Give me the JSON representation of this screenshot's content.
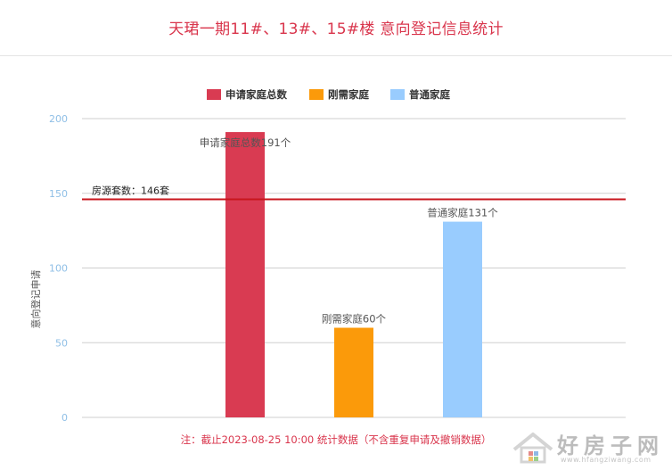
{
  "title": "天珺一期11#、13#、15#楼 意向登记信息统计",
  "footnote": "注：截止2023-08-25 10:00 统计数据（不含重复申请及撤销数据）",
  "watermark": {
    "text": "好房子网",
    "sub": "www.hfangziwang.com"
  },
  "chart_data": {
    "type": "bar",
    "title": "天珺一期11#、13#、15#楼 意向登记信息统计",
    "ylabel": "意向登记申请",
    "xlabel": "",
    "ylim": [
      0,
      200
    ],
    "yticks": [
      0,
      50,
      100,
      150,
      200
    ],
    "grid": true,
    "legend_position": "top",
    "series": [
      {
        "name": "申请家庭总数",
        "color": "#d93b52",
        "value": 191,
        "label": "申请家庭总数191个"
      },
      {
        "name": "刚需家庭",
        "color": "#fb9a0a",
        "value": 60,
        "label": "刚需家庭60个"
      },
      {
        "name": "普通家庭",
        "color": "#99ccfe",
        "value": 131,
        "label": "普通家庭131个"
      }
    ],
    "reference_line": {
      "value": 146,
      "label": "房源套数：146套",
      "color": "#c8161d"
    }
  }
}
